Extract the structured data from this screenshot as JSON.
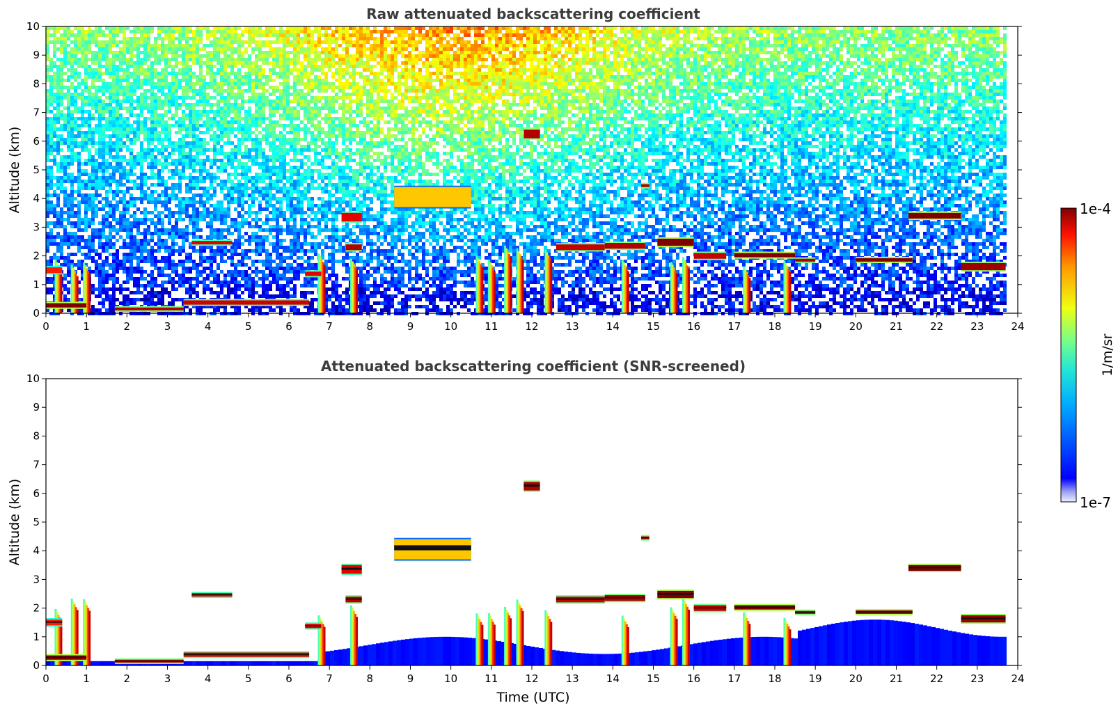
{
  "chart_data": [
    {
      "type": "heatmap",
      "title": "Raw attenuated backscattering coefficient",
      "xlabel": "",
      "ylabel": "Altitude (km)",
      "xlim": [
        0,
        24
      ],
      "ylim": [
        0,
        10
      ],
      "x_ticks": [
        "0",
        "1",
        "2",
        "3",
        "4",
        "5",
        "6",
        "7",
        "8",
        "9",
        "10",
        "11",
        "12",
        "13",
        "14",
        "15",
        "16",
        "17",
        "18",
        "19",
        "20",
        "21",
        "22",
        "23",
        "24"
      ],
      "y_ticks": [
        "0",
        "1",
        "2",
        "3",
        "4",
        "5",
        "6",
        "7",
        "8",
        "9",
        "10"
      ],
      "data_extent_hours": [
        0,
        23.7
      ],
      "background": "noisy",
      "clouds": [
        {
          "t0": 0.0,
          "t1": 1.0,
          "alt": 0.2,
          "thick": 0.15,
          "level": 1.0
        },
        {
          "t0": 0.0,
          "t1": 0.4,
          "alt": 1.4,
          "thick": 0.2,
          "level": 0.85
        },
        {
          "t0": 1.7,
          "t1": 3.4,
          "alt": 0.1,
          "thick": 0.1,
          "level": 0.95
        },
        {
          "t0": 3.6,
          "t1": 4.6,
          "alt": 2.4,
          "thick": 0.12,
          "level": 0.9
        },
        {
          "t0": 3.4,
          "t1": 6.5,
          "alt": 0.3,
          "thick": 0.15,
          "level": 0.92
        },
        {
          "t0": 6.4,
          "t1": 6.8,
          "alt": 1.3,
          "thick": 0.15,
          "level": 0.9
        },
        {
          "t0": 7.3,
          "t1": 7.8,
          "alt": 3.2,
          "thick": 0.3,
          "level": 0.9
        },
        {
          "t0": 7.4,
          "t1": 7.8,
          "alt": 2.2,
          "thick": 0.2,
          "level": 0.95
        },
        {
          "t0": 11.8,
          "t1": 12.2,
          "alt": 6.1,
          "thick": 0.3,
          "level": 0.95
        },
        {
          "t0": 12.6,
          "t1": 13.8,
          "alt": 2.2,
          "thick": 0.2,
          "level": 0.93
        },
        {
          "t0": 13.8,
          "t1": 14.8,
          "alt": 2.25,
          "thick": 0.2,
          "level": 0.95
        },
        {
          "t0": 14.7,
          "t1": 14.9,
          "alt": 4.4,
          "thick": 0.1,
          "level": 0.95
        },
        {
          "t0": 15.1,
          "t1": 16.0,
          "alt": 2.35,
          "thick": 0.25,
          "level": 1.0
        },
        {
          "t0": 16.0,
          "t1": 16.8,
          "alt": 1.9,
          "thick": 0.2,
          "level": 0.93
        },
        {
          "t0": 17.0,
          "t1": 18.5,
          "alt": 1.95,
          "thick": 0.15,
          "level": 1.0
        },
        {
          "t0": 18.5,
          "t1": 19.0,
          "alt": 1.8,
          "thick": 0.1,
          "level": 0.95
        },
        {
          "t0": 20.0,
          "t1": 21.4,
          "alt": 1.8,
          "thick": 0.12,
          "level": 1.0
        },
        {
          "t0": 21.3,
          "t1": 22.6,
          "alt": 3.3,
          "thick": 0.2,
          "level": 1.0
        },
        {
          "t0": 22.6,
          "t1": 23.7,
          "alt": 1.5,
          "thick": 0.25,
          "level": 0.97
        },
        {
          "t0": 8.6,
          "t1": 10.5,
          "alt": 3.7,
          "thick": 0.7,
          "level": 0.68
        }
      ],
      "precip_columns": [
        0.3,
        0.7,
        1.0,
        6.8,
        7.6,
        10.7,
        11.0,
        11.4,
        11.7,
        12.4,
        14.3,
        15.5,
        15.8,
        17.3,
        18.3
      ]
    },
    {
      "type": "heatmap",
      "title": "Attenuated backscattering coefficient (SNR-screened)",
      "xlabel": "Time (UTC)",
      "ylabel": "Altitude (km)",
      "xlim": [
        0,
        24
      ],
      "ylim": [
        0,
        10
      ],
      "x_ticks": [
        "0",
        "1",
        "2",
        "3",
        "4",
        "5",
        "6",
        "7",
        "8",
        "9",
        "10",
        "11",
        "12",
        "13",
        "14",
        "15",
        "16",
        "17",
        "18",
        "19",
        "20",
        "21",
        "22",
        "23",
        "24"
      ],
      "y_ticks": [
        "0",
        "1",
        "2",
        "3",
        "4",
        "5",
        "6",
        "7",
        "8",
        "9",
        "10"
      ],
      "data_extent_hours": [
        0,
        23.7
      ],
      "background": "screened",
      "clouds": "same as raw panel",
      "precip_columns": "same as raw panel"
    }
  ],
  "colorbar": {
    "colormap": "jet",
    "max_label": "1e-4",
    "min_label": "1e-7",
    "label": "1/m/sr"
  }
}
